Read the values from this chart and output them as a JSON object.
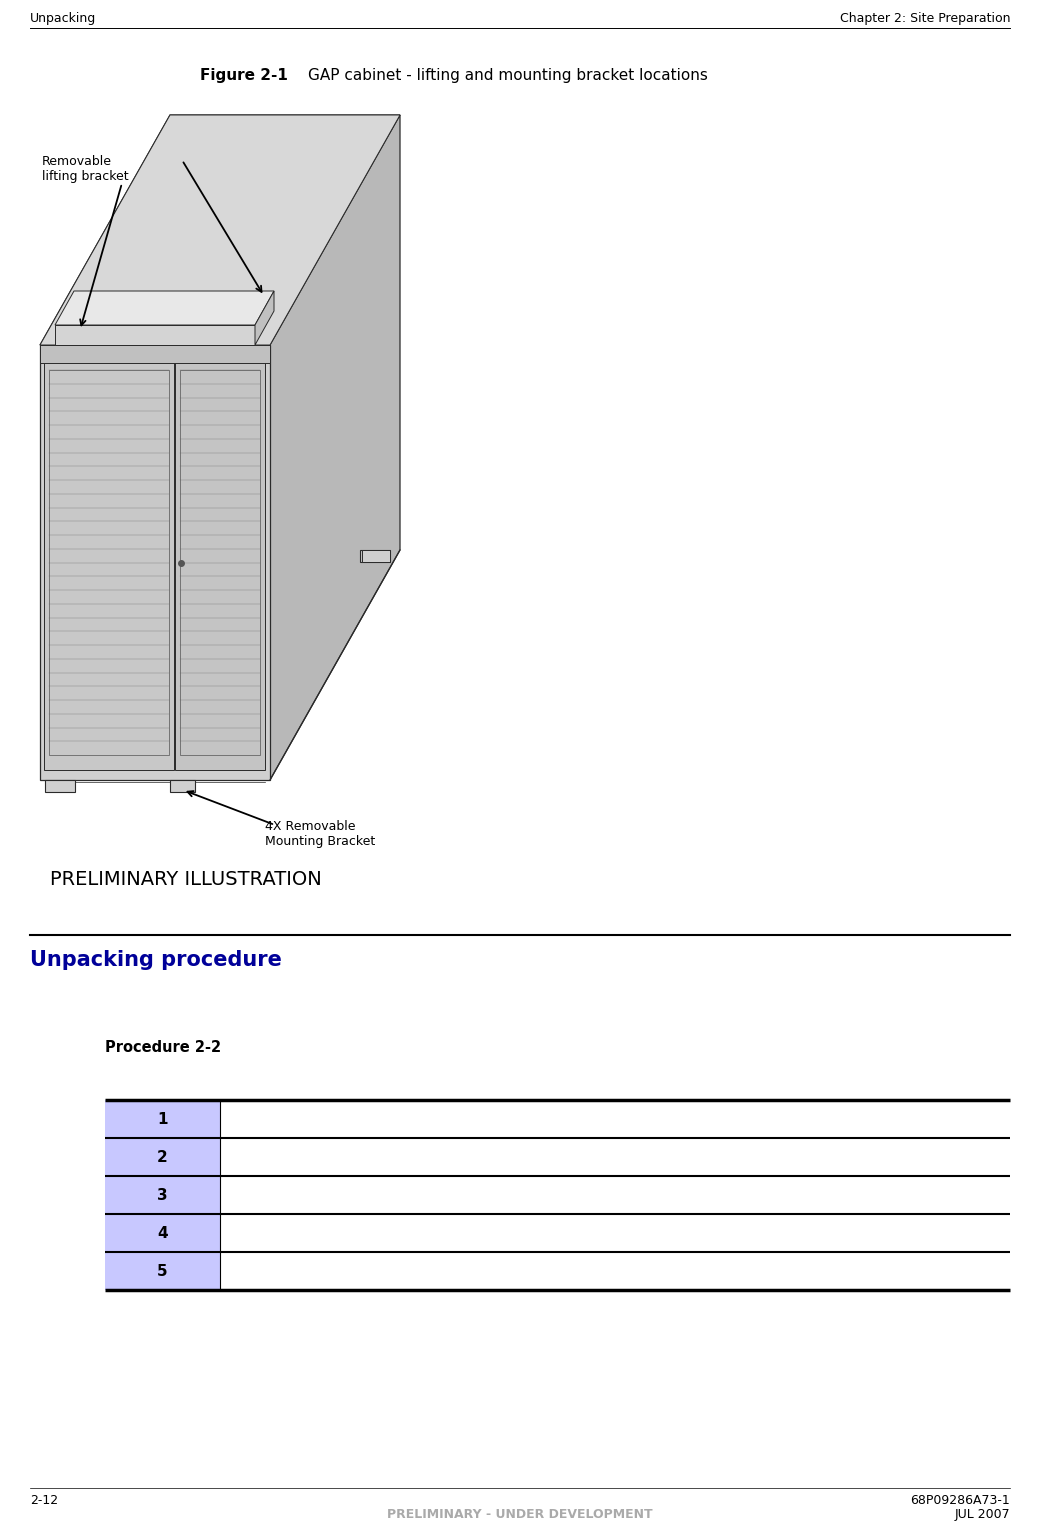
{
  "page_width": 10.4,
  "page_height": 15.27,
  "bg_color": "#ffffff",
  "header_left": "Unpacking",
  "header_right": "Chapter 2: Site Preparation",
  "header_font_size": 9,
  "figure_title_bold": "Figure 2-1",
  "figure_title_rest": "   GAP cabinet - lifting and mounting bracket locations",
  "label_removable_lifting": "Removable\nlifting bracket",
  "label_4x_removable": "4X Removable\nMounting Bracket",
  "preliminary_text": "PRELIMINARY ILLUSTRATION",
  "section_title": "Unpacking procedure",
  "section_title_color": "#000099",
  "procedure_label": "Procedure 2-2",
  "row_numbers": [
    "1",
    "2",
    "3",
    "4",
    "5"
  ],
  "table_cell_bg": "#c8c8ff",
  "footer_left": "2-12",
  "footer_center": "PRELIMINARY - UNDER DEVELOPMENT",
  "footer_right": "68P09286A73-1",
  "footer_right2": "JUL 2007",
  "footer_color": "#aaaaaa"
}
